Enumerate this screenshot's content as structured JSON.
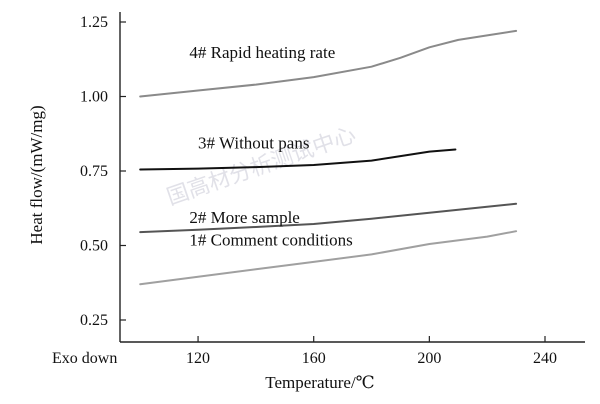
{
  "chart_data": {
    "type": "line",
    "xlabel": "Temperature/℃",
    "ylabel": "Heat flow/(mW/mg)",
    "corner_label": "Exo down",
    "xlim": [
      93,
      240
    ],
    "ylim": [
      0.25,
      1.25
    ],
    "x_ticks": [
      120,
      160,
      200,
      240
    ],
    "x_tick_labels": [
      "120",
      "160",
      "200",
      "240"
    ],
    "y_ticks": [
      0.25,
      0.5,
      0.75,
      1.0,
      1.25
    ],
    "y_tick_labels": [
      "0.25",
      "0.50",
      "0.75",
      "1.00",
      "1.25"
    ],
    "grid": false,
    "watermark": "国高材分析测试中心",
    "series": [
      {
        "name": "4# Rapid heating rate",
        "color": "#8a8a8a",
        "x": [
          100,
          120,
          140,
          160,
          180,
          190,
          200,
          210,
          220,
          230
        ],
        "y": [
          1.0,
          1.02,
          1.04,
          1.065,
          1.1,
          1.13,
          1.165,
          1.19,
          1.205,
          1.22
        ]
      },
      {
        "name": "3# Without pans",
        "color": "#111111",
        "x": [
          100,
          120,
          140,
          160,
          180,
          190,
          200,
          209
        ],
        "y": [
          0.755,
          0.758,
          0.763,
          0.77,
          0.785,
          0.8,
          0.815,
          0.822
        ]
      },
      {
        "name": "2# More sample",
        "color": "#555555",
        "x": [
          100,
          120,
          140,
          160,
          180,
          200,
          220,
          230
        ],
        "y": [
          0.545,
          0.553,
          0.562,
          0.572,
          0.59,
          0.61,
          0.63,
          0.64
        ]
      },
      {
        "name": "1# Comment conditions",
        "color": "#a0a0a0",
        "x": [
          100,
          120,
          140,
          160,
          180,
          200,
          220,
          230
        ],
        "y": [
          0.37,
          0.395,
          0.42,
          0.445,
          0.47,
          0.505,
          0.53,
          0.548
        ]
      }
    ],
    "annotations": [
      {
        "text": "4# Rapid heating rate",
        "x": 117,
        "y": 1.13
      },
      {
        "text": "3# Without pans",
        "x": 120,
        "y": 0.825
      },
      {
        "text": "2# More sample",
        "x": 117,
        "y": 0.575
      },
      {
        "text": "1# Comment conditions",
        "x": 117,
        "y": 0.5
      }
    ]
  }
}
